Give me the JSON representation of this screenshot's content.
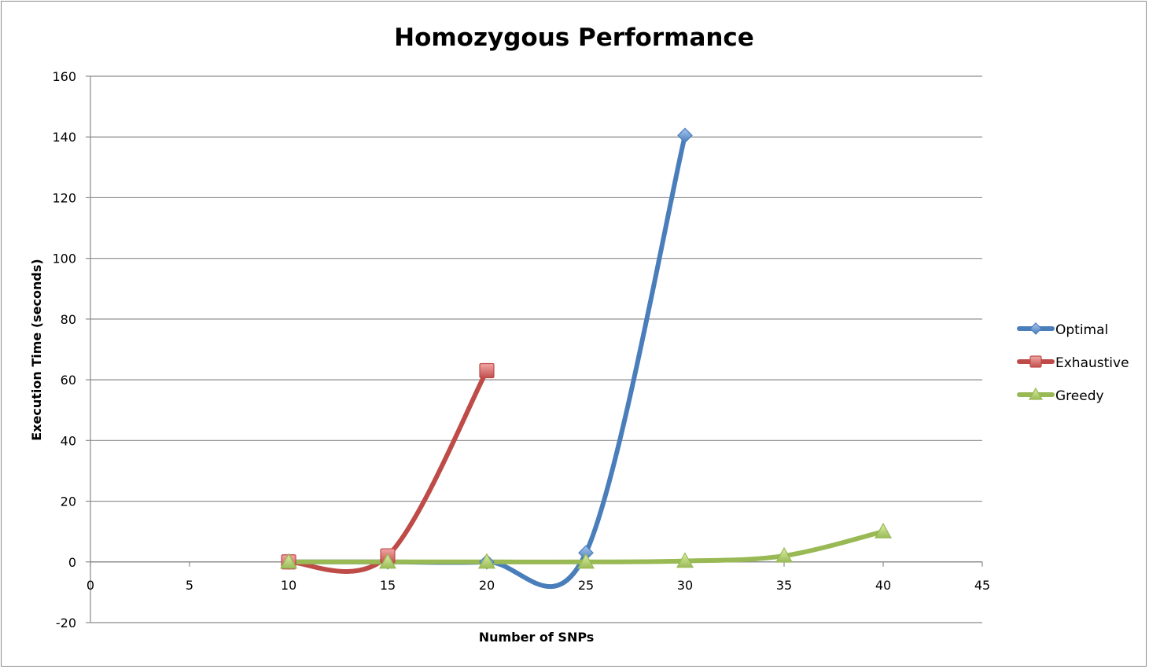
{
  "chart_data": {
    "type": "scatter",
    "title": "Homozygous Performance",
    "xlabel": "Number of SNPs",
    "ylabel": "Execution Time (seconds)",
    "xlim": [
      0,
      45
    ],
    "ylim": [
      -20,
      160
    ],
    "x_ticks": [
      0,
      5,
      10,
      15,
      20,
      25,
      30,
      35,
      40,
      45
    ],
    "y_ticks": [
      -20,
      0,
      20,
      40,
      60,
      80,
      100,
      120,
      140,
      160
    ],
    "grid": "horizontal",
    "smoothed_lines": true,
    "legend_position": "right",
    "series": [
      {
        "name": "Optimal",
        "color": "#4a7ebb",
        "marker": "diamond",
        "x": [
          10,
          15,
          20,
          25,
          30
        ],
        "y": [
          0,
          0,
          0,
          3,
          140.5
        ]
      },
      {
        "name": "Exhaustive",
        "color": "#be4b48",
        "marker": "square",
        "x": [
          10,
          15,
          20
        ],
        "y": [
          0,
          2,
          63
        ]
      },
      {
        "name": "Greedy",
        "color": "#98b954",
        "marker": "triangle",
        "x": [
          10,
          15,
          20,
          25,
          30,
          35,
          40
        ],
        "y": [
          0,
          0,
          0,
          0,
          0.3,
          2,
          10
        ]
      }
    ]
  }
}
